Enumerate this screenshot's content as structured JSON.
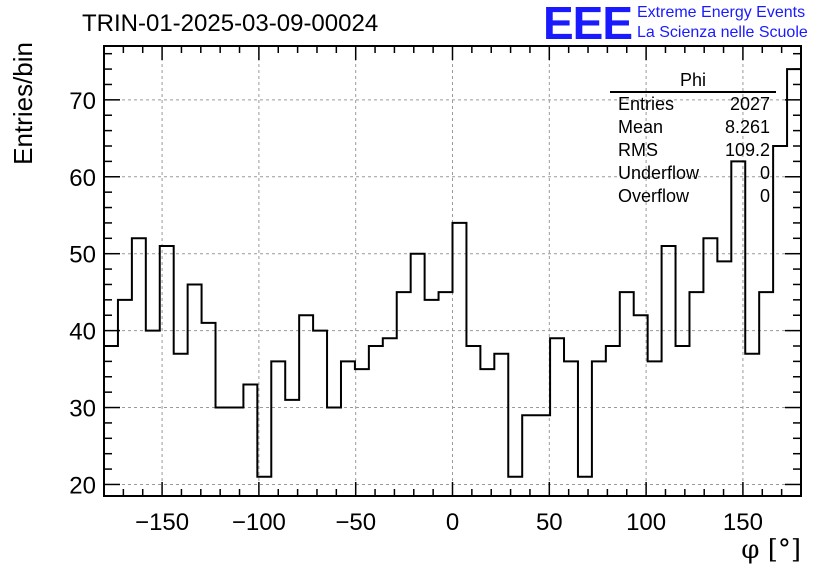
{
  "chart_data": {
    "type": "histogram",
    "title": "TRIN-01-2025-03-09-00024",
    "xlabel": "φ [°]",
    "ylabel": "Entries/bin",
    "xlim": [
      -180,
      180
    ],
    "ylim": [
      18.5,
      77
    ],
    "bin_width": 7.2,
    "grid": true,
    "x_ticks": [
      -150,
      -100,
      -50,
      0,
      50,
      100,
      150
    ],
    "y_ticks": [
      20,
      30,
      40,
      50,
      60,
      70
    ],
    "values": [
      38,
      44,
      52,
      40,
      51,
      37,
      46,
      41,
      30,
      30,
      33,
      21,
      36,
      31,
      42,
      40,
      30,
      36,
      35,
      38,
      39,
      45,
      50,
      44,
      45,
      54,
      38,
      35,
      37,
      21,
      29,
      29,
      39,
      36,
      21,
      36,
      38,
      45,
      42,
      36,
      51,
      38,
      45,
      52,
      49,
      62,
      37,
      45,
      64,
      74
    ],
    "stats": {
      "name": "Phi",
      "rows": [
        {
          "label": "Entries",
          "value": "2027"
        },
        {
          "label": "Mean",
          "value": "8.261"
        },
        {
          "label": "RMS",
          "value": "109.2"
        },
        {
          "label": "Underflow",
          "value": "0"
        },
        {
          "label": "Overflow",
          "value": "0"
        }
      ]
    }
  },
  "logo": {
    "mark": "EEE",
    "line1": "Extreme Energy Events",
    "line2": "La Scienza nelle Scuole",
    "color": "#1a1aff"
  }
}
